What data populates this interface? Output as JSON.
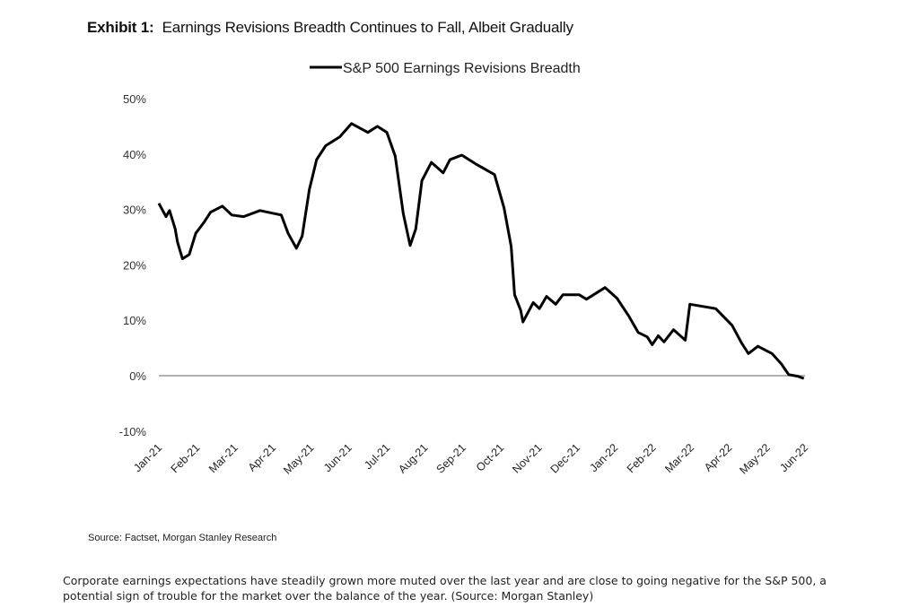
{
  "chart_data": {
    "type": "line",
    "title_prefix": "Exhibit 1:",
    "title": "Earnings Revisions Breadth Continues to Fall, Albeit Gradually",
    "legend": {
      "label": "S&P 500 Earnings Revisions Breadth",
      "placement": "top-center"
    },
    "xlabel": "",
    "ylabel": "",
    "x_tick_labels": [
      "Jan-21",
      "Feb-21",
      "Mar-21",
      "Apr-21",
      "May-21",
      "Jun-21",
      "Jul-21",
      "Aug-21",
      "Sep-21",
      "Oct-21",
      "Nov-21",
      "Dec-21",
      "Jan-22",
      "Feb-22",
      "Mar-22",
      "Apr-22",
      "May-22",
      "Jun-22"
    ],
    "y_tick_labels": [
      "50%",
      "40%",
      "30%",
      "20%",
      "10%",
      "0%",
      "-10%"
    ],
    "y_ticks": [
      50,
      40,
      30,
      20,
      10,
      0,
      -10
    ],
    "ylim": [
      -10,
      50
    ],
    "xlim_months_since_jan21": [
      0,
      17
    ],
    "grid": false,
    "zero_line": true,
    "series": [
      {
        "name": "S&P 500 Earnings Revisions Breadth",
        "color": "#000000",
        "x_months_since_jan21": [
          0,
          0.19,
          0.28,
          0.43,
          0.49,
          0.62,
          0.8,
          0.97,
          1.18,
          1.36,
          1.67,
          1.92,
          2.23,
          2.66,
          3.22,
          3.4,
          3.62,
          3.77,
          3.96,
          4.15,
          4.39,
          4.76,
          5.07,
          5.5,
          5.75,
          6.0,
          6.22,
          6.43,
          6.61,
          6.76,
          6.92,
          7.17,
          7.48,
          7.66,
          7.97,
          8.34,
          8.83,
          9.08,
          9.27,
          9.36,
          9.52,
          9.58,
          9.85,
          10.01,
          10.2,
          10.44,
          10.63,
          11.06,
          11.25,
          11.74,
          12.05,
          12.36,
          12.61,
          12.85,
          12.98,
          13.14,
          13.29,
          13.54,
          13.85,
          13.97,
          14.65,
          15.08,
          15.33,
          15.51,
          15.76,
          16.13,
          16.38,
          16.57,
          16.81,
          16.97
        ],
        "values_pct": [
          31.1,
          28.7,
          29.8,
          26.5,
          24.1,
          21.1,
          21.9,
          25.7,
          27.6,
          29.5,
          30.6,
          29.0,
          28.7,
          29.8,
          29.0,
          25.7,
          23.0,
          25.2,
          33.6,
          39.0,
          41.5,
          43.1,
          45.5,
          43.9,
          45.0,
          43.9,
          39.6,
          29.3,
          23.5,
          26.5,
          35.2,
          38.5,
          36.6,
          39.0,
          39.8,
          38.2,
          36.3,
          30.3,
          23.3,
          14.6,
          11.8,
          9.7,
          13.2,
          12.1,
          14.3,
          12.9,
          14.6,
          14.6,
          13.8,
          15.9,
          14.0,
          10.8,
          7.8,
          7.0,
          5.6,
          7.2,
          6.1,
          8.3,
          6.4,
          12.9,
          12.1,
          9.1,
          5.9,
          4.0,
          5.3,
          4.0,
          2.1,
          0.2,
          -0.1,
          -0.5
        ]
      }
    ],
    "source": "Source: Factset, Morgan Stanley Research"
  },
  "caption": "Corporate earnings expectations have steadily grown more muted over the last year and are close to going negative for the S&P 500, a potential sign of trouble for the market over the balance of the year. (Source: Morgan Stanley)"
}
